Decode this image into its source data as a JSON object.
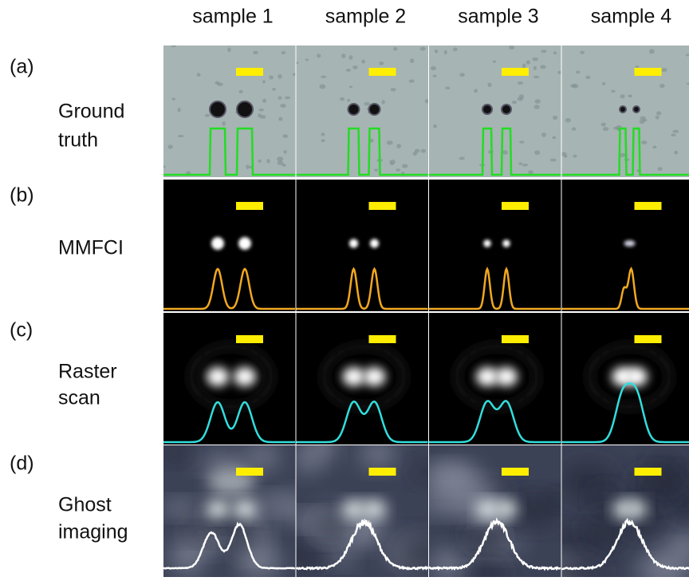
{
  "columns": [
    "sample 1",
    "sample 2",
    "sample 3",
    "sample 4"
  ],
  "rows": [
    {
      "tag": "(a)",
      "label": [
        "Ground",
        "truth"
      ]
    },
    {
      "tag": "(b)",
      "label": [
        "MMFCI"
      ]
    },
    {
      "tag": "(c)",
      "label": [
        "Raster",
        "scan"
      ]
    },
    {
      "tag": "(d)",
      "label": [
        "Ghost",
        "imaging"
      ]
    }
  ]
}
